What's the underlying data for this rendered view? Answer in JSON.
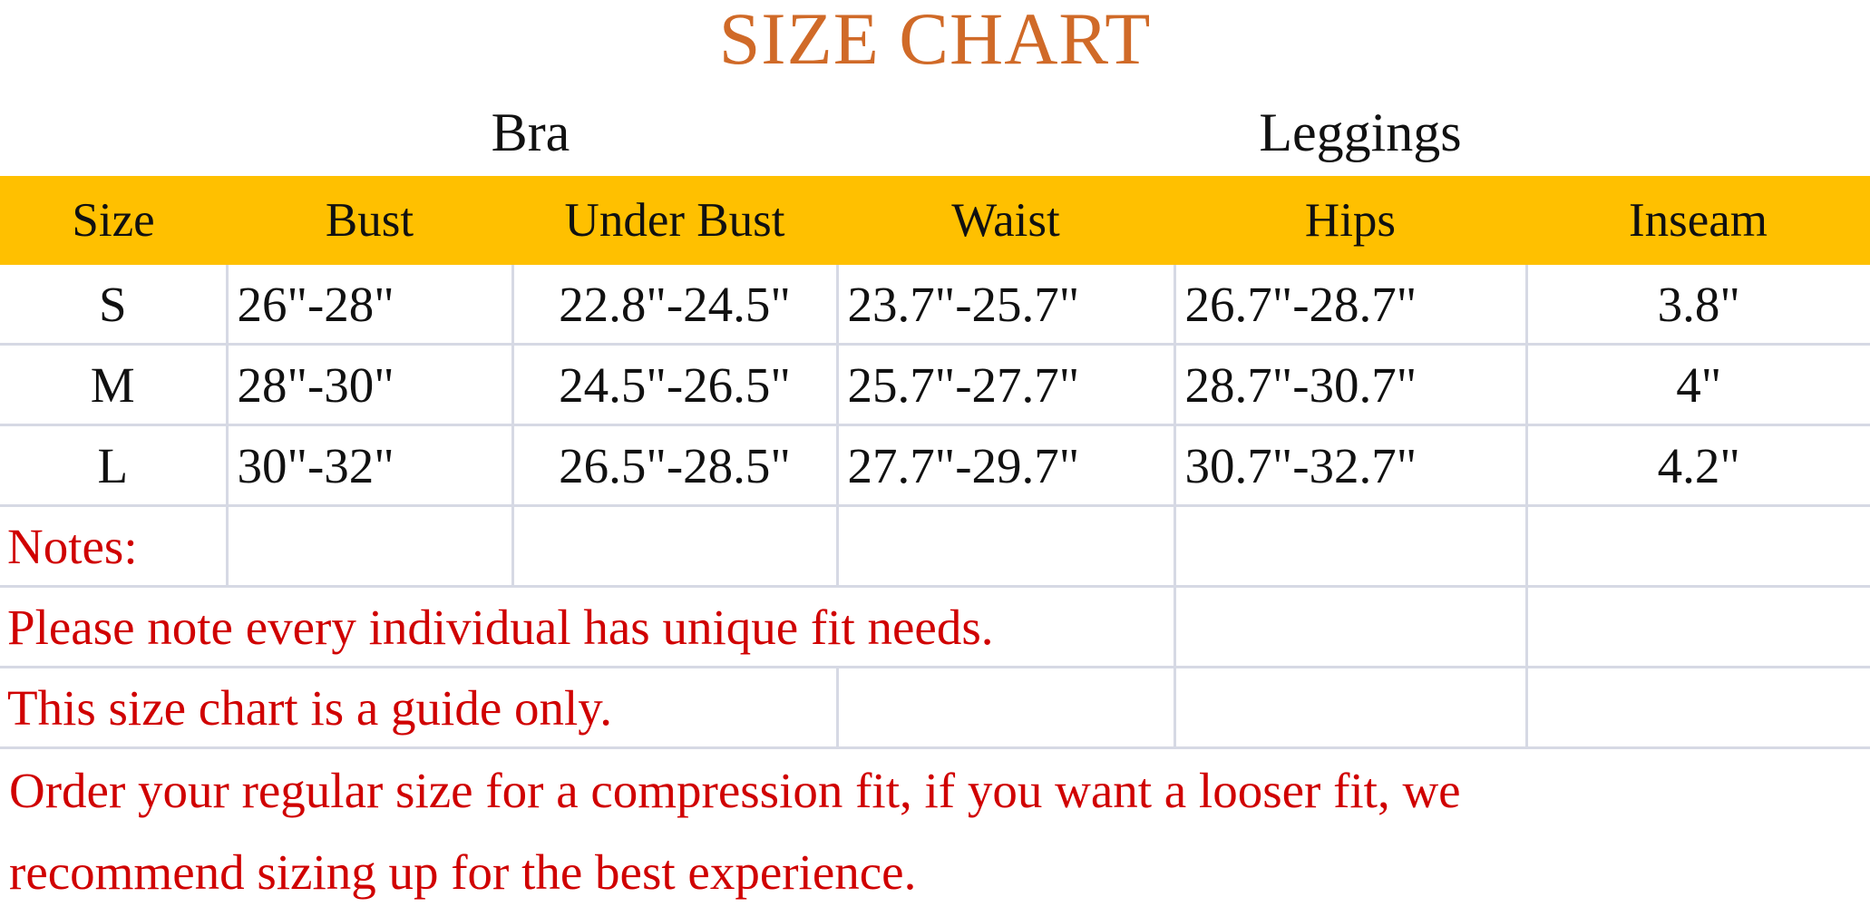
{
  "title": "SIZE CHART",
  "groups": {
    "bra": "Bra",
    "leggings": "Leggings"
  },
  "colors": {
    "title": "#d06a28",
    "header_bg": "#ffc000",
    "notes": "#d00000",
    "grid": "#d6d9e4"
  },
  "table": {
    "headers": [
      "Size",
      "Bust",
      "Under Bust",
      "Waist",
      "Hips",
      "Inseam"
    ],
    "rows": [
      [
        "S",
        "26\"-28\"",
        "22.8\"-24.5\"",
        "23.7\"-25.7\"",
        "26.7\"-28.7\"",
        "3.8\""
      ],
      [
        "M",
        "28\"-30\"",
        "24.5\"-26.5\"",
        "25.7\"-27.7\"",
        "28.7\"-30.7\"",
        "4\""
      ],
      [
        "L",
        "30\"-32\"",
        "26.5\"-28.5\"",
        "27.7\"-29.7\"",
        "30.7\"-32.7\"",
        "4.2\""
      ]
    ]
  },
  "notes": {
    "label": "Notes:",
    "line1": "Please note every individual has unique fit needs.",
    "line2": "This size chart is a guide only.",
    "line3": "Order your regular size for a compression fit, if you want a looser fit, we",
    "line4": "recommend sizing up for the best experience."
  }
}
